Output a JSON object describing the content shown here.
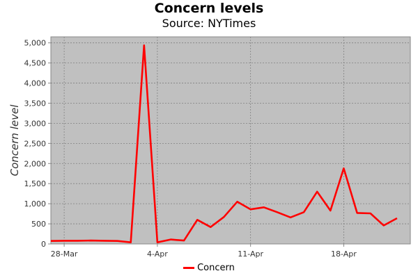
{
  "chart_data": {
    "type": "line",
    "title": "Concern levels",
    "subtitle": "Source: NYTimes",
    "xlabel": "",
    "ylabel": "Concern level",
    "x_tick_labels": [
      "28-Mar",
      "4-Apr",
      "11-Apr",
      "18-Apr"
    ],
    "x_tick_dates": [
      "2020-03-28",
      "2020-04-04",
      "2020-04-11",
      "2020-04-18"
    ],
    "x_range": [
      "2020-03-27",
      "2020-04-23"
    ],
    "y_ticks": [
      0,
      500,
      1000,
      1500,
      2000,
      2500,
      3000,
      3500,
      4000,
      4500,
      5000
    ],
    "y_tick_labels": [
      "0",
      "500",
      "1,000",
      "1,500",
      "2,000",
      "2,500",
      "3,000",
      "3,500",
      "4,000",
      "4,500",
      "5,000"
    ],
    "ylim": [
      0,
      5150
    ],
    "grid": true,
    "legend_position": "bottom",
    "background_color": "#c0c0c0",
    "series": [
      {
        "name": "Concern",
        "color": "#ff0000",
        "x": [
          "2020-03-27",
          "2020-03-28",
          "2020-03-29",
          "2020-03-30",
          "2020-03-31",
          "2020-04-01",
          "2020-04-02",
          "2020-04-03",
          "2020-04-04",
          "2020-04-05",
          "2020-04-06",
          "2020-04-07",
          "2020-04-08",
          "2020-04-09",
          "2020-04-10",
          "2020-04-11",
          "2020-04-12",
          "2020-04-13",
          "2020-04-14",
          "2020-04-15",
          "2020-04-16",
          "2020-04-17",
          "2020-04-18",
          "2020-04-19",
          "2020-04-20",
          "2020-04-21",
          "2020-04-22",
          "2020-04-23"
        ],
        "values": [
          75,
          80,
          80,
          85,
          80,
          75,
          40,
          4940,
          40,
          110,
          85,
          600,
          420,
          670,
          1050,
          860,
          910,
          790,
          660,
          790,
          1300,
          830,
          1880,
          770,
          760,
          460,
          640,
          null
        ]
      }
    ]
  }
}
